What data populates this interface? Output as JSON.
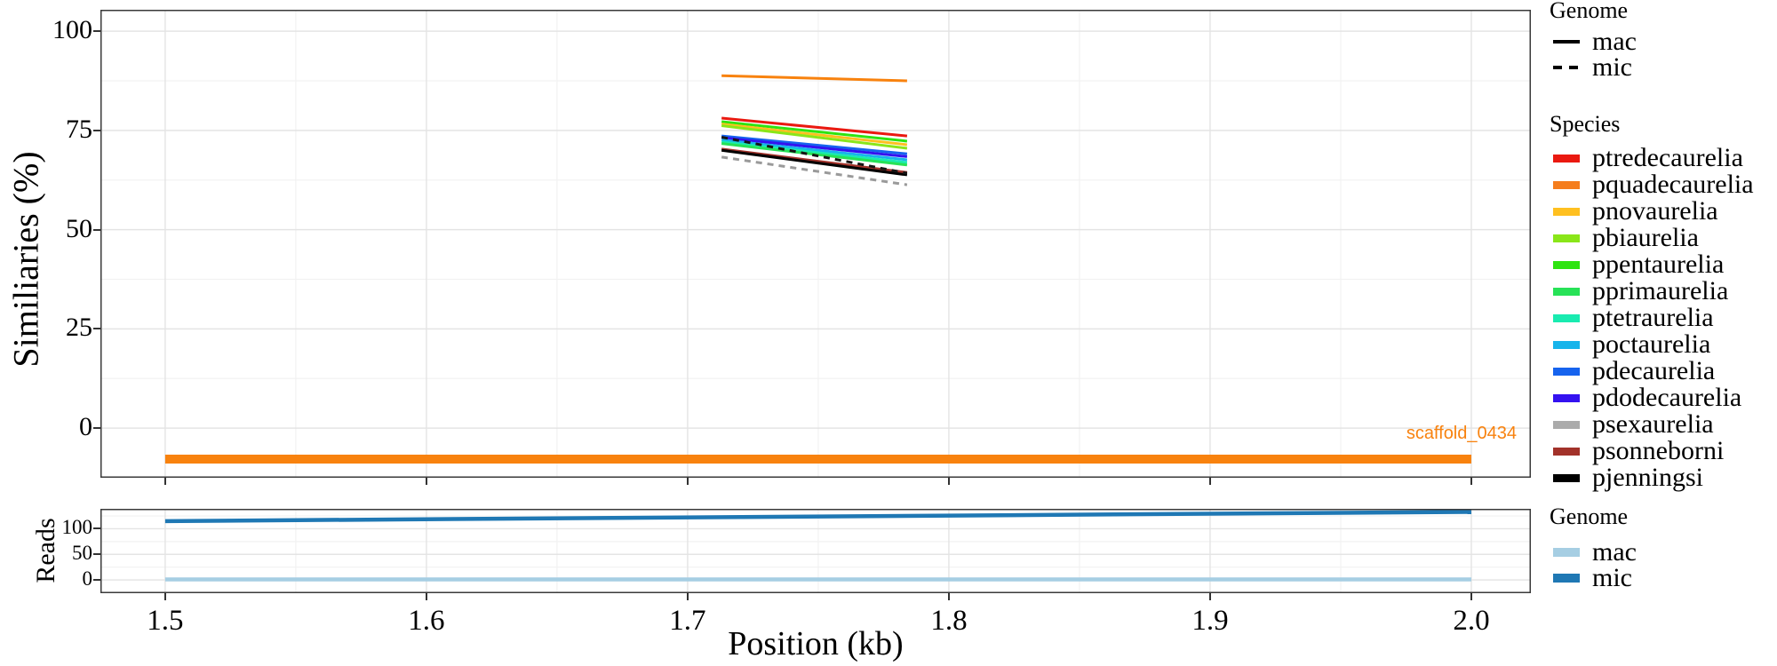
{
  "chart_data": [
    {
      "panel": "similarities",
      "type": "line",
      "title": "",
      "xlabel": "",
      "ylabel": "Similiaries (%)",
      "grid": true,
      "legend_position": "right",
      "xticks": [
        1.5,
        1.6,
        1.7,
        1.8,
        1.9,
        2.0
      ],
      "yticks": [
        0,
        25,
        50,
        75,
        100
      ],
      "xlim": [
        1.4752,
        2.0228
      ],
      "ylim": [
        -12.5,
        105.4
      ],
      "series": [
        {
          "species": "pquadecaurelia",
          "genome": "mac",
          "color": "#f8820e",
          "dashed": false,
          "x": [
            1.713,
            1.784
          ],
          "y": [
            88.8,
            87.5
          ]
        },
        {
          "species": "ptredecaurelia",
          "genome": "mac",
          "color": "#ea1910",
          "dashed": false,
          "x": [
            1.713,
            1.784
          ],
          "y": [
            78.1,
            73.6
          ]
        },
        {
          "species": "ppentaurelia",
          "genome": "mac",
          "color": "#2ee410",
          "dashed": false,
          "x": [
            1.713,
            1.784
          ],
          "y": [
            77.2,
            72.3
          ]
        },
        {
          "species": "pnovaurelia",
          "genome": "mac",
          "color": "#ffc020",
          "dashed": false,
          "x": [
            1.713,
            1.784
          ],
          "y": [
            76.6,
            71.4
          ]
        },
        {
          "species": "pbiaurelia",
          "genome": "mac",
          "color": "#8ae619",
          "dashed": false,
          "x": [
            1.713,
            1.784
          ],
          "y": [
            76.2,
            70.5
          ]
        },
        {
          "species": "pdecaurelia",
          "genome": "mac",
          "color": "#1663ee",
          "dashed": false,
          "x": [
            1.713,
            1.784
          ],
          "y": [
            73.6,
            69.1
          ]
        },
        {
          "species": "pdodecaurelia",
          "genome": "mac",
          "color": "#3412f0",
          "dashed": false,
          "x": [
            1.713,
            1.784
          ],
          "y": [
            73.2,
            68.4
          ]
        },
        {
          "species": "poctaurelia",
          "genome": "mac",
          "color": "#17b4eb",
          "dashed": false,
          "x": [
            1.713,
            1.784
          ],
          "y": [
            72.6,
            67.6
          ]
        },
        {
          "species": "ptetraurelia",
          "genome": "mac",
          "color": "#19ebb0",
          "dashed": false,
          "x": [
            1.713,
            1.784
          ],
          "y": [
            72.1,
            66.9
          ]
        },
        {
          "species": "pprimaurelia",
          "genome": "mac",
          "color": "#27e257",
          "dashed": false,
          "x": [
            1.713,
            1.784
          ],
          "y": [
            71.7,
            66.3
          ]
        },
        {
          "species": "psonneborni",
          "genome": "mac",
          "color": "#a2322a",
          "dashed": false,
          "x": [
            1.713,
            1.784
          ],
          "y": [
            70.3,
            64.4
          ]
        },
        {
          "species": "pjenningsi",
          "genome": "mac",
          "color": "#000000",
          "dashed": false,
          "x": [
            1.713,
            1.784
          ],
          "y": [
            70.0,
            63.8
          ]
        },
        {
          "species": "pjenningsi",
          "genome": "mic",
          "color": "#151515",
          "dashed": true,
          "x": [
            1.713,
            1.784
          ],
          "y": [
            73.3,
            64.2
          ]
        },
        {
          "species": "psexaurelia",
          "genome": "mic",
          "color": "#9a9a9a",
          "dashed": true,
          "x": [
            1.713,
            1.784
          ],
          "y": [
            68.3,
            61.3
          ]
        }
      ],
      "annotation": {
        "text": "scaffold_0434",
        "color": "#f8820e",
        "bar_x": [
          1.5,
          2.0
        ],
        "bar_y": -7.8
      }
    },
    {
      "panel": "reads",
      "type": "line",
      "title": "",
      "xlabel": "Position (kb)",
      "ylabel": "Reads",
      "grid": true,
      "xticks": [
        1.5,
        1.6,
        1.7,
        1.8,
        1.9,
        2.0
      ],
      "yticks": [
        0,
        50,
        100
      ],
      "xlim": [
        1.4752,
        2.0228
      ],
      "ylim": [
        -26,
        139
      ],
      "series": [
        {
          "genome": "mac",
          "color": "#a6cee3",
          "dashed": false,
          "x": [
            1.5,
            2.0
          ],
          "y": [
            1,
            1
          ]
        },
        {
          "genome": "mic",
          "color": "#1f78b4",
          "dashed": false,
          "x": [
            1.5,
            2.0
          ],
          "y": [
            115,
            133
          ]
        }
      ]
    }
  ],
  "legends": {
    "genome_lines": {
      "title": "Genome",
      "items": [
        {
          "label": "mac",
          "style": "solid",
          "color": "#000000"
        },
        {
          "label": "mic",
          "style": "dashed",
          "color": "#000000"
        }
      ]
    },
    "species": {
      "title": "Species",
      "items": [
        {
          "label": "ptredecaurelia",
          "color": "#ea1910"
        },
        {
          "label": "pquadecaurelia",
          "color": "#f57d1d"
        },
        {
          "label": "pnovaurelia",
          "color": "#ffc020"
        },
        {
          "label": "pbiaurelia",
          "color": "#8ae619"
        },
        {
          "label": "ppentaurelia",
          "color": "#2ee410"
        },
        {
          "label": "pprimaurelia",
          "color": "#27e257"
        },
        {
          "label": "ptetraurelia",
          "color": "#19ebb0"
        },
        {
          "label": "poctaurelia",
          "color": "#17b4eb"
        },
        {
          "label": "pdecaurelia",
          "color": "#1663ee"
        },
        {
          "label": "pdodecaurelia",
          "color": "#3412f0"
        },
        {
          "label": "psexaurelia",
          "color": "#ababab"
        },
        {
          "label": "psonneborni",
          "color": "#a2322a"
        },
        {
          "label": "pjenningsi",
          "color": "#000000"
        }
      ]
    },
    "genome_reads": {
      "title": "Genome",
      "items": [
        {
          "label": "mac",
          "style": "bar",
          "color": "#a6cee3"
        },
        {
          "label": "mic",
          "style": "bar",
          "color": "#1f78b4"
        }
      ]
    }
  }
}
